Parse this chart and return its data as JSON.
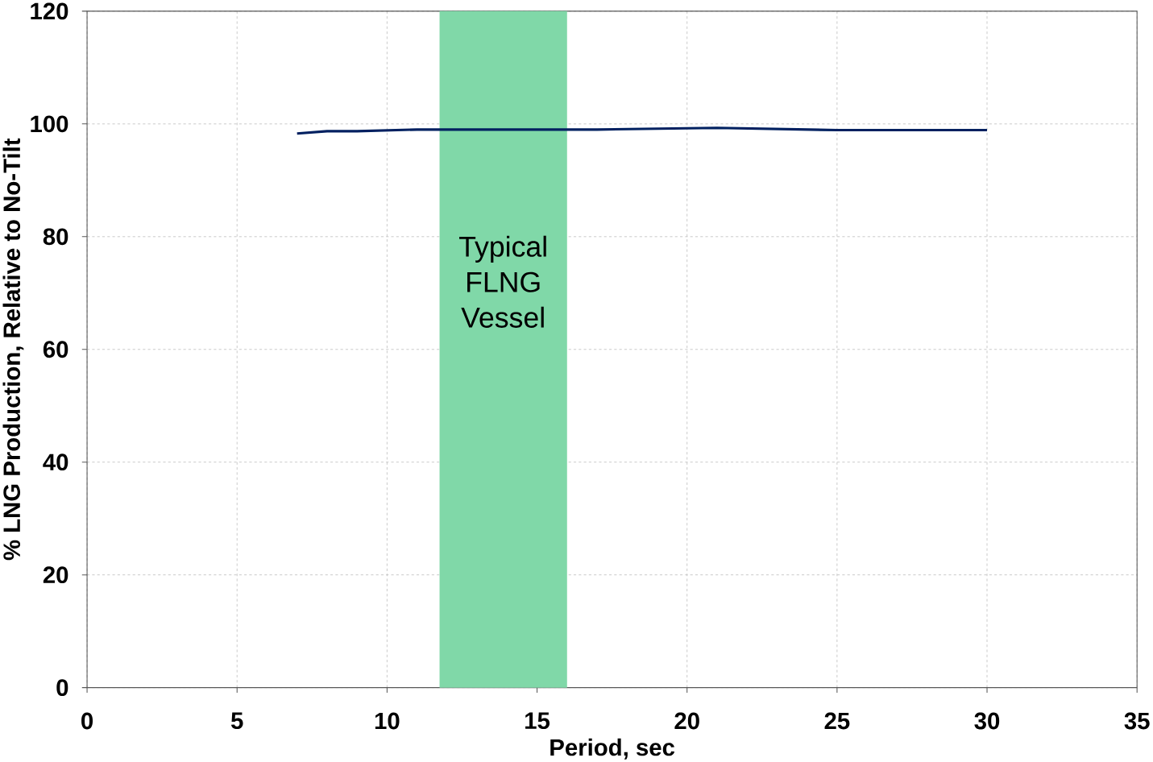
{
  "chart_data": {
    "type": "line",
    "xlabel": "Period, sec",
    "ylabel": "% LNG Production, Relative to No-Tilt",
    "x": [
      7,
      8,
      9,
      11,
      14,
      17,
      21,
      25,
      30
    ],
    "series": [
      {
        "color": "#002060",
        "values": [
          98.3,
          98.7,
          98.7,
          99.0,
          99.0,
          99.0,
          99.3,
          98.9,
          98.9
        ]
      }
    ],
    "xlim": [
      0,
      35
    ],
    "ylim": [
      0,
      120
    ],
    "xticks": [
      0,
      5,
      10,
      15,
      20,
      25,
      30,
      35
    ],
    "yticks": [
      0,
      20,
      40,
      60,
      80,
      100,
      120
    ],
    "grid": true,
    "marker": "none",
    "line_style": "solid",
    "bands": [
      {
        "axis": "x",
        "from": 11.75,
        "to": 16,
        "label": "Typical FLNG Vessel",
        "color": "#80d8a8"
      }
    ]
  }
}
